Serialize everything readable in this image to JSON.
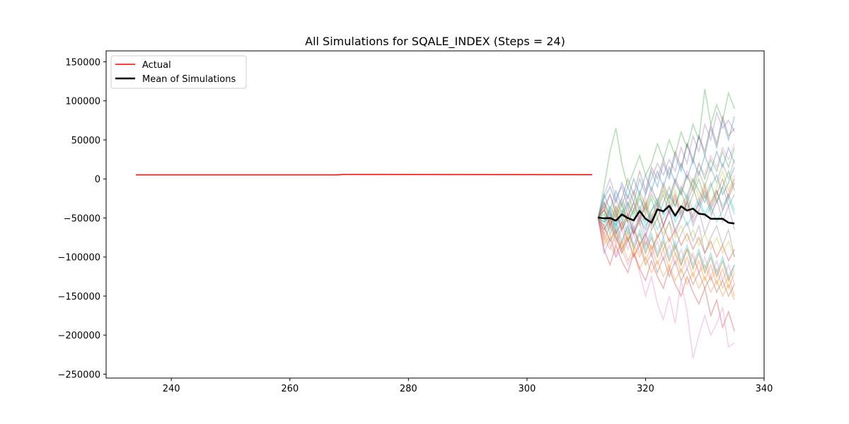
{
  "chart_data": {
    "type": "line",
    "title": "All Simulations for SQALE_INDEX (Steps = 24)",
    "xlabel": "",
    "ylabel": "",
    "xlim": [
      229,
      340
    ],
    "ylim": [
      -255000,
      164000
    ],
    "xticks": [
      240,
      260,
      280,
      300,
      320,
      340
    ],
    "yticks": [
      150000,
      100000,
      50000,
      0,
      -50000,
      -100000,
      -150000,
      -200000,
      -250000
    ],
    "ytick_labels": [
      "150000",
      "100000",
      "50000",
      "0",
      "−50000",
      "−100000",
      "−150000",
      "−200000",
      "−250000"
    ],
    "grid": false,
    "legend": {
      "placement": "top-left",
      "entries": [
        "Actual",
        "Mean of Simulations"
      ]
    },
    "series": [
      {
        "name": "Actual",
        "color": "#ff0000",
        "x": [
          234,
          268,
          269,
          290,
          311
        ],
        "values": [
          5200,
          5200,
          5700,
          5600,
          5400
        ]
      },
      {
        "name": "Mean of Simulations",
        "color": "#000000",
        "x": [
          312,
          313,
          314,
          315,
          316,
          317,
          318,
          319,
          320,
          321,
          322,
          323,
          324,
          325,
          326,
          327,
          328,
          329,
          330,
          331,
          332,
          333,
          334,
          335
        ],
        "values": [
          -49500,
          -50500,
          -50000,
          -53500,
          -45500,
          -50000,
          -53000,
          -41000,
          -51000,
          -56000,
          -39000,
          -41500,
          -34500,
          -47000,
          -35000,
          -40500,
          -38000,
          -44500,
          -45500,
          -51000,
          -51000,
          -51000,
          -56000,
          -57000
        ]
      }
    ],
    "simulations": {
      "count": 30,
      "alpha": 0.35,
      "colors": [
        "#1f77b4",
        "#ff7f0e",
        "#2ca02c",
        "#d62728",
        "#9467bd",
        "#8c564b",
        "#e377c2",
        "#7f7f7f",
        "#bcbd22",
        "#17becf"
      ],
      "x": [
        312,
        313,
        314,
        315,
        316,
        317,
        318,
        319,
        320,
        321,
        322,
        323,
        324,
        325,
        326,
        327,
        328,
        329,
        330,
        331,
        332,
        333,
        334,
        335
      ],
      "runs": [
        [
          -50000,
          -30000,
          -45000,
          -60000,
          -40000,
          -55000,
          -70000,
          -50000,
          -65000,
          -40000,
          -30000,
          -45000,
          -20000,
          -35000,
          -10000,
          -25000,
          0,
          -15000,
          -30000,
          -10000,
          5000,
          -20000,
          -5000,
          15000
        ],
        [
          -50000,
          -80000,
          -60000,
          -75000,
          -90000,
          -70000,
          -85000,
          -100000,
          -80000,
          -95000,
          -70000,
          -90000,
          -75000,
          -95000,
          -110000,
          -90000,
          -100000,
          -120000,
          -110000,
          -130000,
          -115000,
          -140000,
          -125000,
          -150000
        ],
        [
          -50000,
          -40000,
          -55000,
          -35000,
          -50000,
          -30000,
          -45000,
          -25000,
          -40000,
          -20000,
          -35000,
          -15000,
          -30000,
          -5000,
          -20000,
          5000,
          -10000,
          20000,
          0,
          25000,
          10000,
          35000,
          15000,
          40000
        ],
        [
          -50000,
          -65000,
          -50000,
          -70000,
          -55000,
          -80000,
          -65000,
          -85000,
          -70000,
          -90000,
          -75000,
          -60000,
          -80000,
          -65000,
          -85000,
          -70000,
          -90000,
          -75000,
          -95000,
          -80000,
          -100000,
          -85000,
          -105000,
          -90000
        ],
        [
          -50000,
          -20000,
          0,
          -25000,
          -10000,
          -35000,
          -15000,
          -40000,
          -20000,
          0,
          20000,
          5000,
          25000,
          10000,
          40000,
          20000,
          55000,
          35000,
          70000,
          50000,
          85000,
          65000,
          75000,
          60000
        ],
        [
          -50000,
          -60000,
          -80000,
          -65000,
          -90000,
          -75000,
          -100000,
          -85000,
          -110000,
          -95000,
          -120000,
          -100000,
          -125000,
          -105000,
          -130000,
          -115000,
          -135000,
          -120000,
          -140000,
          -125000,
          -145000,
          -130000,
          -150000,
          -135000
        ],
        [
          -50000,
          -35000,
          -20000,
          -40000,
          -25000,
          -45000,
          -30000,
          -50000,
          -35000,
          -15000,
          -30000,
          -10000,
          -25000,
          0,
          -15000,
          10000,
          -5000,
          20000,
          5000,
          30000,
          15000,
          40000,
          25000,
          45000
        ],
        [
          -50000,
          -70000,
          -55000,
          -75000,
          -95000,
          -80000,
          -60000,
          -85000,
          -70000,
          -50000,
          -75000,
          -60000,
          -40000,
          -65000,
          -50000,
          -30000,
          -55000,
          -40000,
          -20000,
          -45000,
          -30000,
          -10000,
          -35000,
          -20000
        ],
        [
          -50000,
          -45000,
          -65000,
          -50000,
          -35000,
          -55000,
          -40000,
          -60000,
          -45000,
          -65000,
          -50000,
          -70000,
          -55000,
          -75000,
          -60000,
          -80000,
          -65000,
          -85000,
          -70000,
          -90000,
          -75000,
          -95000,
          -80000,
          -100000
        ],
        [
          -50000,
          -55000,
          -40000,
          -60000,
          -45000,
          -30000,
          -50000,
          -35000,
          -55000,
          -40000,
          -25000,
          -45000,
          -30000,
          -50000,
          -35000,
          -20000,
          -40000,
          -25000,
          -45000,
          -30000,
          -15000,
          -35000,
          -20000,
          -40000
        ],
        [
          -50000,
          -25000,
          -10000,
          -30000,
          -5000,
          -25000,
          0,
          -20000,
          5000,
          -15000,
          10000,
          -10000,
          15000,
          -5000,
          20000,
          0,
          25000,
          5000,
          30000,
          10000,
          35000,
          15000,
          40000,
          20000
        ],
        [
          -50000,
          -75000,
          -90000,
          -70000,
          -95000,
          -75000,
          -100000,
          -80000,
          -105000,
          -85000,
          -110000,
          -90000,
          -115000,
          -95000,
          -120000,
          -100000,
          -125000,
          -105000,
          -130000,
          -110000,
          -135000,
          -115000,
          -140000,
          -120000
        ],
        [
          -50000,
          -10000,
          35000,
          65000,
          20000,
          -10000,
          10000,
          30000,
          5000,
          20000,
          45000,
          25000,
          50000,
          30000,
          60000,
          40000,
          70000,
          50000,
          115000,
          70000,
          95000,
          75000,
          110000,
          90000
        ],
        [
          -50000,
          -90000,
          -110000,
          -85000,
          -105000,
          -120000,
          -95000,
          -115000,
          -130000,
          -105000,
          -125000,
          -140000,
          -115000,
          -135000,
          -150000,
          -125000,
          -145000,
          -160000,
          -140000,
          -175000,
          -155000,
          -190000,
          -170000,
          -195000
        ],
        [
          -50000,
          -60000,
          -40000,
          -70000,
          -55000,
          -35000,
          -65000,
          -45000,
          -75000,
          -50000,
          -30000,
          -60000,
          -40000,
          -70000,
          -50000,
          -30000,
          -60000,
          -40000,
          -70000,
          -50000,
          -25000,
          -55000,
          -35000,
          -65000
        ],
        [
          -50000,
          -40000,
          -60000,
          -45000,
          -65000,
          -50000,
          -30000,
          -55000,
          -35000,
          -60000,
          -40000,
          -20000,
          -45000,
          -25000,
          -50000,
          -30000,
          -10000,
          -35000,
          -15000,
          -40000,
          -20000,
          0,
          -25000,
          -5000
        ],
        [
          -50000,
          -70000,
          -85000,
          -100000,
          -90000,
          -110000,
          -95000,
          -120000,
          -150000,
          -125000,
          -160000,
          -180000,
          -150000,
          -185000,
          -130000,
          -170000,
          -230000,
          -200000,
          -175000,
          -200000,
          -185000,
          -165000,
          -215000,
          -210000
        ],
        [
          -50000,
          -65000,
          -50000,
          -80000,
          -60000,
          -45000,
          -70000,
          -55000,
          -85000,
          -65000,
          -50000,
          -75000,
          -55000,
          -90000,
          -70000,
          -55000,
          -80000,
          -60000,
          -95000,
          -75000,
          -60000,
          -85000,
          -65000,
          -100000
        ],
        [
          -50000,
          -30000,
          -55000,
          -35000,
          -60000,
          -40000,
          -20000,
          -45000,
          -25000,
          -50000,
          -30000,
          -10000,
          -35000,
          -15000,
          -40000,
          -20000,
          0,
          -25000,
          -5000,
          -30000,
          -10000,
          10000,
          -15000,
          5000
        ],
        [
          -50000,
          -45000,
          -70000,
          -55000,
          -80000,
          -60000,
          -85000,
          -65000,
          -90000,
          -70000,
          -95000,
          -75000,
          -100000,
          -80000,
          -105000,
          -85000,
          -110000,
          -90000,
          -115000,
          -95000,
          -120000,
          -100000,
          -125000,
          -110000
        ],
        [
          -50000,
          -20000,
          -40000,
          -15000,
          -35000,
          -10000,
          -30000,
          0,
          -20000,
          10000,
          -10000,
          20000,
          0,
          30000,
          10000,
          45000,
          20000,
          55000,
          30000,
          65000,
          40000,
          75000,
          50000,
          80000
        ],
        [
          -50000,
          -85000,
          -70000,
          -95000,
          -80000,
          -105000,
          -90000,
          -115000,
          -100000,
          -120000,
          -105000,
          -125000,
          -110000,
          -130000,
          -115000,
          -135000,
          -120000,
          -140000,
          -125000,
          -145000,
          -130000,
          -150000,
          -135000,
          -155000
        ],
        [
          -50000,
          -55000,
          -35000,
          -50000,
          -30000,
          -55000,
          -40000,
          -20000,
          -45000,
          -25000,
          -50000,
          -30000,
          -10000,
          -35000,
          -15000,
          -40000,
          -20000,
          0,
          -25000,
          -5000,
          -30000,
          -10000,
          10000,
          -15000
        ],
        [
          -50000,
          -35000,
          -60000,
          -40000,
          -65000,
          -45000,
          -70000,
          -50000,
          -30000,
          -55000,
          -35000,
          -60000,
          -40000,
          -20000,
          -45000,
          -25000,
          -50000,
          -30000,
          -10000,
          -35000,
          -15000,
          -40000,
          -20000,
          0
        ],
        [
          -50000,
          -95000,
          -75000,
          -100000,
          -80000,
          -60000,
          -90000,
          -70000,
          -95000,
          -75000,
          -100000,
          -80000,
          -105000,
          -85000,
          -110000,
          -90000,
          -115000,
          -95000,
          -120000,
          -100000,
          -125000,
          -105000,
          -130000,
          -110000
        ],
        [
          -50000,
          -40000,
          -20000,
          -45000,
          -25000,
          0,
          -20000,
          10000,
          -15000,
          15000,
          0,
          25000,
          5000,
          35000,
          15000,
          45000,
          25000,
          55000,
          35000,
          70000,
          45000,
          80000,
          55000,
          65000
        ],
        [
          -50000,
          -75000,
          -60000,
          -85000,
          -65000,
          -90000,
          -70000,
          -95000,
          -75000,
          -100000,
          -80000,
          -105000,
          -85000,
          -110000,
          -90000,
          -115000,
          -95000,
          -120000,
          -100000,
          -125000,
          -105000,
          -130000,
          -110000,
          -135000
        ],
        [
          -50000,
          -30000,
          -50000,
          -25000,
          -45000,
          -20000,
          -40000,
          -15000,
          -35000,
          -10000,
          -30000,
          -5000,
          -25000,
          0,
          -20000,
          5000,
          -15000,
          10000,
          -10000,
          15000,
          -5000,
          20000,
          0,
          25000
        ],
        [
          -50000,
          -60000,
          -80000,
          -60000,
          -85000,
          -65000,
          -90000,
          -70000,
          -95000,
          -75000,
          -100000,
          -80000,
          -105000,
          -85000,
          -110000,
          -90000,
          -115000,
          -95000,
          -120000,
          -100000,
          -125000,
          -105000,
          -130000,
          -115000
        ],
        [
          -50000,
          -55000,
          -45000,
          -65000,
          -50000,
          -70000,
          -55000,
          -40000,
          -60000,
          -45000,
          -65000,
          -50000,
          -35000,
          -55000,
          -40000,
          -60000,
          -45000,
          -30000,
          -50000,
          -35000,
          -55000,
          -40000,
          -25000,
          -45000
        ]
      ]
    }
  }
}
